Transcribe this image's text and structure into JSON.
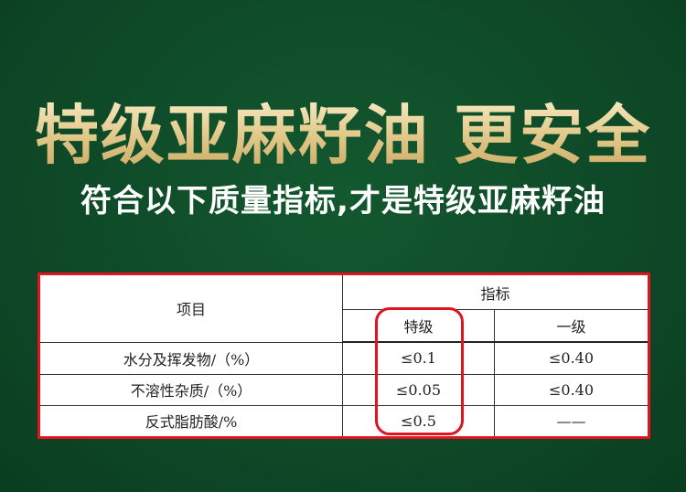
{
  "title": "特级亚麻籽油 更安全",
  "subtitle": "符合以下质量指标,才是特级亚麻籽油",
  "table": {
    "header_item": "项目",
    "header_index": "指标",
    "grades": [
      "特级",
      "一级"
    ],
    "rows": [
      {
        "item": "水分及挥发物/（%）",
        "special": "≤0.1",
        "first": "≤0.40"
      },
      {
        "item": "不溶性杂质/（%）",
        "special": "≤0.05",
        "first": "≤0.40"
      },
      {
        "item": "反式脂肪酸/%",
        "special": "≤0.5",
        "first": "——"
      }
    ]
  },
  "colors": {
    "background": "#0d4626",
    "accent": "#e0141e",
    "title_gold": "#e2c98a"
  }
}
